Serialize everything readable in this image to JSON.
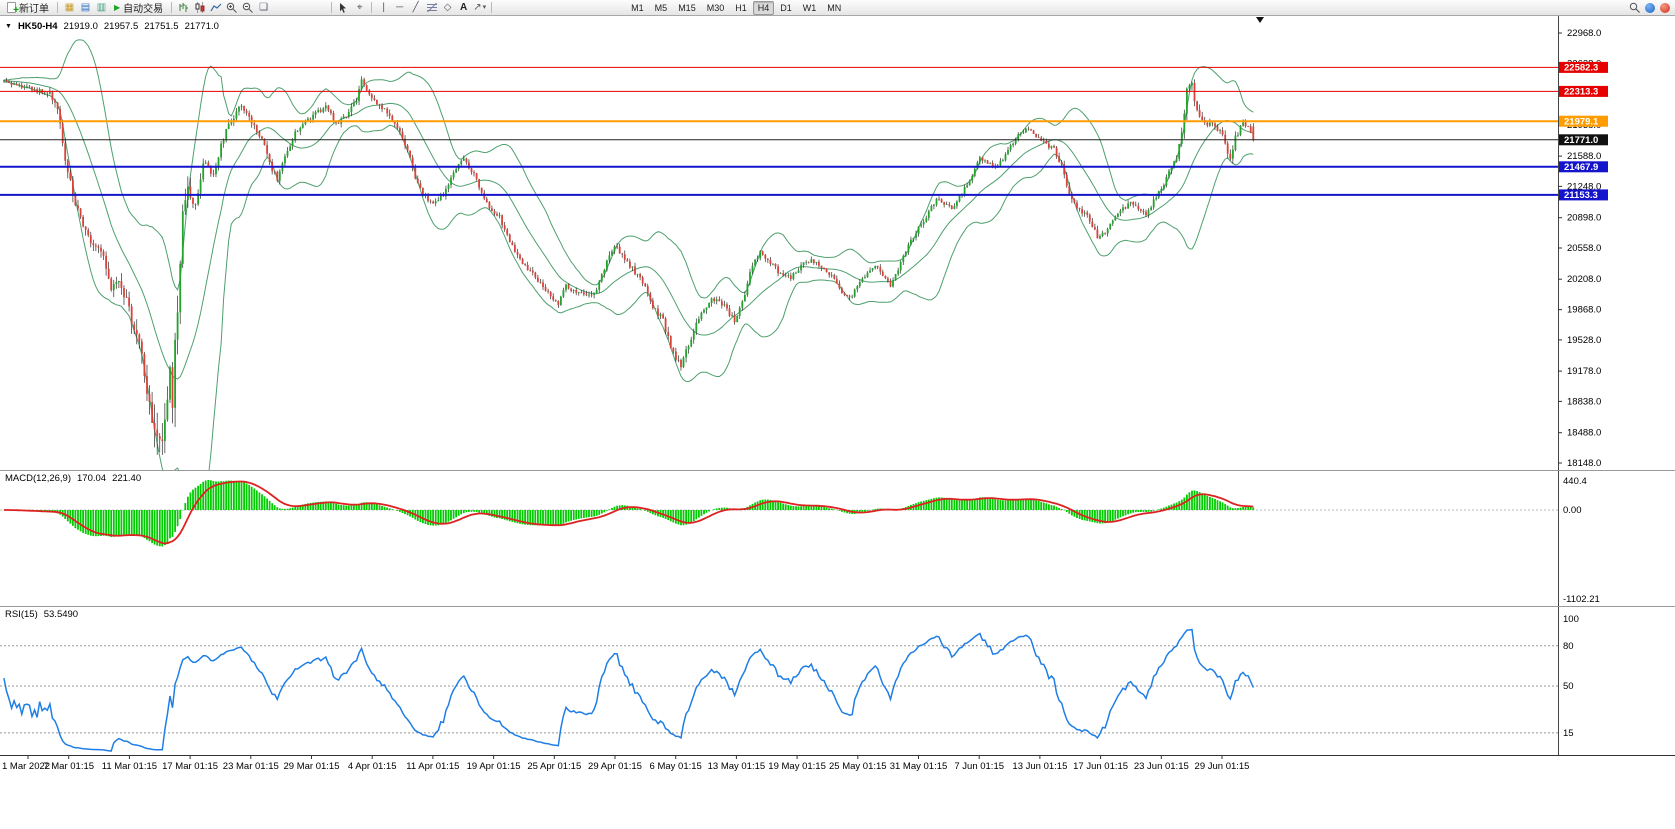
{
  "toolbar": {
    "new_order_label": "新订单",
    "auto_trading_label": "自动交易",
    "timeframes": [
      "M1",
      "M5",
      "M15",
      "M30",
      "H1",
      "H4",
      "D1",
      "W1",
      "MN"
    ],
    "active_timeframe": "H4"
  },
  "overlays": {
    "chart_title": {
      "symbol": "HK50-H4",
      "open": "21919.0",
      "high": "21957.5",
      "low": "21751.5",
      "close": "21771.0"
    },
    "macd_title": {
      "name": "MACD(12,26,9)",
      "main": "170.04",
      "signal": "221.40"
    },
    "rsi_title": {
      "name": "RSI(15)",
      "value": "53.5490"
    }
  },
  "chart_data": {
    "type": "candlestick",
    "symbol": "HK50",
    "timeframe": "H4",
    "candle_count": 490,
    "last_ohlc": {
      "open": 21919.0,
      "high": 21957.5,
      "low": 21751.5,
      "close": 21771.0
    },
    "price_range": [
      18148.0,
      22968.0
    ],
    "price_axis_ticks": [
      22968.0,
      22628.0,
      22288.0,
      21938.0,
      21588.0,
      21248.0,
      20898.0,
      20558.0,
      20208.0,
      19868.0,
      19528.0,
      19178.0,
      18838.0,
      18488.0,
      18148.0
    ],
    "horizontal_lines": [
      {
        "price": 22582.3,
        "color": "#e60000",
        "width": 1,
        "badge": "#e60000"
      },
      {
        "price": 22313.3,
        "color": "#e60000",
        "width": 1,
        "badge": "#e60000"
      },
      {
        "price": 21979.1,
        "color": "#ff9c00",
        "width": 2,
        "badge": "#ff9c00"
      },
      {
        "price": 21771.0,
        "color": "#222222",
        "width": 1,
        "badge": "#111111"
      },
      {
        "price": 21467.9,
        "color": "#1414cc",
        "width": 2,
        "badge": "#1414cc"
      },
      {
        "price": 21153.3,
        "color": "#1414cc",
        "width": 2,
        "badge": "#1414cc"
      }
    ],
    "colors": {
      "bull": "#22a32b",
      "bear": "#d94238",
      "wick": "#2a2a2a"
    },
    "close_waypoints": [
      [
        0,
        22430
      ],
      [
        6,
        22380
      ],
      [
        12,
        22330
      ],
      [
        18,
        22290
      ],
      [
        21,
        22080
      ],
      [
        24,
        21580
      ],
      [
        27,
        21120
      ],
      [
        31,
        20800
      ],
      [
        35,
        20600
      ],
      [
        39,
        20450
      ],
      [
        42,
        20050
      ],
      [
        45,
        20220
      ],
      [
        49,
        19850
      ],
      [
        53,
        19500
      ],
      [
        56,
        18950
      ],
      [
        59,
        18550
      ],
      [
        61,
        18330
      ],
      [
        63,
        18750
      ],
      [
        65,
        19080
      ],
      [
        66,
        18820
      ],
      [
        68,
        19950
      ],
      [
        70,
        20900
      ],
      [
        72,
        21180
      ],
      [
        75,
        20980
      ],
      [
        78,
        21480
      ],
      [
        82,
        21420
      ],
      [
        86,
        21800
      ],
      [
        90,
        22040
      ],
      [
        93,
        22140
      ],
      [
        97,
        21960
      ],
      [
        101,
        21780
      ],
      [
        104,
        21500
      ],
      [
        107,
        21330
      ],
      [
        110,
        21560
      ],
      [
        114,
        21840
      ],
      [
        118,
        21960
      ],
      [
        122,
        22080
      ],
      [
        126,
        22140
      ],
      [
        130,
        21960
      ],
      [
        134,
        22040
      ],
      [
        138,
        22200
      ],
      [
        140,
        22420
      ],
      [
        143,
        22270
      ],
      [
        147,
        22160
      ],
      [
        151,
        22040
      ],
      [
        155,
        21860
      ],
      [
        158,
        21640
      ],
      [
        162,
        21260
      ],
      [
        165,
        21120
      ],
      [
        168,
        21040
      ],
      [
        172,
        21160
      ],
      [
        176,
        21420
      ],
      [
        180,
        21540
      ],
      [
        184,
        21380
      ],
      [
        187,
        21180
      ],
      [
        190,
        21000
      ],
      [
        194,
        20900
      ],
      [
        198,
        20620
      ],
      [
        202,
        20420
      ],
      [
        206,
        20300
      ],
      [
        210,
        20160
      ],
      [
        214,
        20020
      ],
      [
        217,
        19930
      ],
      [
        220,
        20140
      ],
      [
        224,
        20060
      ],
      [
        228,
        20010
      ],
      [
        232,
        20080
      ],
      [
        236,
        20420
      ],
      [
        239,
        20600
      ],
      [
        242,
        20480
      ],
      [
        246,
        20330
      ],
      [
        250,
        20180
      ],
      [
        254,
        19920
      ],
      [
        258,
        19740
      ],
      [
        262,
        19380
      ],
      [
        265,
        19220
      ],
      [
        268,
        19480
      ],
      [
        271,
        19700
      ],
      [
        275,
        19920
      ],
      [
        279,
        20010
      ],
      [
        283,
        19870
      ],
      [
        286,
        19740
      ],
      [
        289,
        19950
      ],
      [
        293,
        20380
      ],
      [
        296,
        20500
      ],
      [
        300,
        20400
      ],
      [
        304,
        20260
      ],
      [
        308,
        20220
      ],
      [
        312,
        20360
      ],
      [
        316,
        20430
      ],
      [
        320,
        20340
      ],
      [
        324,
        20240
      ],
      [
        328,
        20060
      ],
      [
        331,
        19990
      ],
      [
        334,
        20120
      ],
      [
        338,
        20280
      ],
      [
        341,
        20370
      ],
      [
        344,
        20250
      ],
      [
        347,
        20140
      ],
      [
        350,
        20320
      ],
      [
        354,
        20580
      ],
      [
        358,
        20780
      ],
      [
        362,
        20960
      ],
      [
        365,
        21120
      ],
      [
        368,
        21050
      ],
      [
        371,
        20990
      ],
      [
        375,
        21180
      ],
      [
        379,
        21380
      ],
      [
        382,
        21560
      ],
      [
        385,
        21500
      ],
      [
        389,
        21470
      ],
      [
        393,
        21650
      ],
      [
        397,
        21810
      ],
      [
        400,
        21910
      ],
      [
        403,
        21830
      ],
      [
        407,
        21740
      ],
      [
        411,
        21660
      ],
      [
        414,
        21480
      ],
      [
        417,
        21150
      ],
      [
        421,
        20990
      ],
      [
        425,
        20880
      ],
      [
        428,
        20680
      ],
      [
        431,
        20720
      ],
      [
        434,
        20860
      ],
      [
        438,
        20990
      ],
      [
        441,
        21070
      ],
      [
        444,
        20990
      ],
      [
        447,
        20940
      ],
      [
        451,
        21130
      ],
      [
        455,
        21340
      ],
      [
        459,
        21580
      ],
      [
        461,
        21820
      ],
      [
        463,
        22300
      ],
      [
        465,
        22370
      ],
      [
        467,
        22110
      ],
      [
        470,
        21970
      ],
      [
        473,
        21930
      ],
      [
        476,
        21870
      ],
      [
        478,
        21740
      ],
      [
        480,
        21560
      ],
      [
        482,
        21810
      ],
      [
        485,
        21950
      ],
      [
        487,
        21900
      ],
      [
        489,
        21771
      ]
    ],
    "volatility_waypoints": [
      [
        0,
        70
      ],
      [
        14,
        80
      ],
      [
        20,
        150
      ],
      [
        26,
        190
      ],
      [
        34,
        170
      ],
      [
        42,
        200
      ],
      [
        50,
        260
      ],
      [
        56,
        450
      ],
      [
        60,
        550
      ],
      [
        64,
        600
      ],
      [
        68,
        600
      ],
      [
        71,
        420
      ],
      [
        76,
        220
      ],
      [
        82,
        160
      ],
      [
        90,
        130
      ],
      [
        100,
        115
      ],
      [
        120,
        105
      ],
      [
        140,
        115
      ],
      [
        155,
        105
      ],
      [
        170,
        95
      ],
      [
        190,
        95
      ],
      [
        210,
        100
      ],
      [
        220,
        95
      ],
      [
        236,
        110
      ],
      [
        250,
        120
      ],
      [
        258,
        135
      ],
      [
        264,
        150
      ],
      [
        272,
        120
      ],
      [
        285,
        100
      ],
      [
        300,
        90
      ],
      [
        315,
        85
      ],
      [
        330,
        90
      ],
      [
        345,
        85
      ],
      [
        360,
        90
      ],
      [
        375,
        85
      ],
      [
        390,
        85
      ],
      [
        405,
        85
      ],
      [
        414,
        115
      ],
      [
        422,
        100
      ],
      [
        430,
        95
      ],
      [
        445,
        85
      ],
      [
        458,
        95
      ],
      [
        461,
        170
      ],
      [
        463,
        230
      ],
      [
        466,
        175
      ],
      [
        470,
        125
      ],
      [
        477,
        110
      ],
      [
        480,
        135
      ],
      [
        484,
        110
      ],
      [
        489,
        85
      ]
    ],
    "indicators": {
      "bollinger": {
        "period": 20,
        "deviation": 2,
        "color": "#4ea06e"
      },
      "macd": {
        "fast": 12,
        "slow": 26,
        "signal": 9,
        "value_main": 170.04,
        "value_signal": 221.4,
        "axis": {
          "max": "440.4",
          "zero": "0.00",
          "min": "-1102.21"
        },
        "hist_color": "#00cc00",
        "signal_color": "#dd2222"
      },
      "rsi": {
        "period": 15,
        "value": 53.549,
        "levels": [
          80,
          50,
          15
        ],
        "axis_labels": [
          "100",
          "80",
          "50",
          "15"
        ],
        "color": "#1e7ee6"
      }
    },
    "time_axis": [
      "1 Mar 2022",
      "7 Mar 01:15",
      "11 Mar 01:15",
      "17 Mar 01:15",
      "23 Mar 01:15",
      "29 Mar 01:15",
      "4 Apr 01:15",
      "11 Apr 01:15",
      "19 Apr 01:15",
      "25 Apr 01:15",
      "29 Apr 01:15",
      "6 May 01:15",
      "13 May 01:15",
      "19 May 01:15",
      "25 May 01:15",
      "31 May 01:15",
      "7 Jun 01:15",
      "13 Jun 01:15",
      "17 Jun 01:15",
      "23 Jun 01:15",
      "29 Jun 01:15"
    ]
  }
}
